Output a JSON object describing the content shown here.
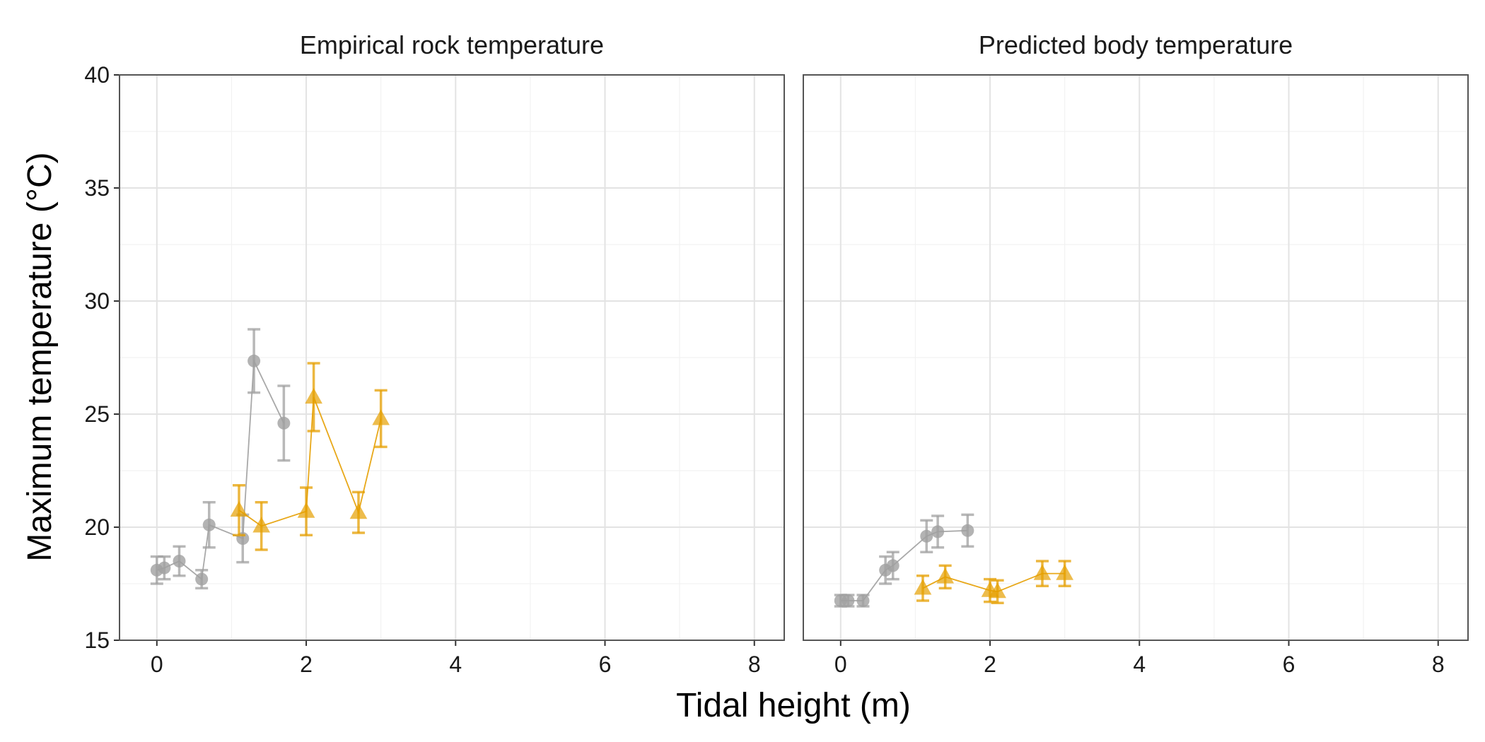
{
  "chart_data": {
    "type": "scatter",
    "xlabel": "Tidal height (m)",
    "ylabel": "Maximum temperature (°C)",
    "xlim": [
      -0.5,
      8.4
    ],
    "ylim": [
      15,
      40
    ],
    "x_ticks": [
      0,
      2,
      4,
      6,
      8
    ],
    "y_ticks": [
      15,
      20,
      25,
      30,
      35,
      40
    ],
    "grid": true,
    "legend": "none",
    "panels": [
      {
        "title": "Empirical rock temperature",
        "series": [
          {
            "color": "#a0a0a0",
            "marker": "circle",
            "points": [
              {
                "x": 0.0,
                "y": 18.1,
                "err": 0.6
              },
              {
                "x": 0.1,
                "y": 18.2,
                "err": 0.5
              },
              {
                "x": 0.3,
                "y": 18.5,
                "err": 0.65
              },
              {
                "x": 0.6,
                "y": 17.7,
                "err": 0.4
              },
              {
                "x": 0.7,
                "y": 20.1,
                "err": 1.0
              },
              {
                "x": 1.15,
                "y": 19.5,
                "err": 1.05
              },
              {
                "x": 1.3,
                "y": 27.35,
                "err": 1.4
              },
              {
                "x": 1.7,
                "y": 24.6,
                "err": 1.65
              }
            ]
          },
          {
            "color": "#e69f00",
            "marker": "triangle",
            "points": [
              {
                "x": 1.1,
                "y": 20.75,
                "err": 1.1
              },
              {
                "x": 1.4,
                "y": 20.05,
                "err": 1.05
              },
              {
                "x": 2.0,
                "y": 20.7,
                "err": 1.05
              },
              {
                "x": 2.1,
                "y": 25.75,
                "err": 1.5
              },
              {
                "x": 2.7,
                "y": 20.65,
                "err": 0.9
              },
              {
                "x": 3.0,
                "y": 24.8,
                "err": 1.25
              }
            ]
          }
        ]
      },
      {
        "title": "Predicted body temperature",
        "series": [
          {
            "color": "#a0a0a0",
            "marker": "circle",
            "points": [
              {
                "x": 0.0,
                "y": 16.75,
                "err": 0.25
              },
              {
                "x": 0.1,
                "y": 16.75,
                "err": 0.25
              },
              {
                "x": 0.3,
                "y": 16.75,
                "err": 0.25
              },
              {
                "x": 0.6,
                "y": 18.1,
                "err": 0.6
              },
              {
                "x": 0.7,
                "y": 18.3,
                "err": 0.6
              },
              {
                "x": 1.15,
                "y": 19.6,
                "err": 0.7
              },
              {
                "x": 1.3,
                "y": 19.8,
                "err": 0.7
              },
              {
                "x": 1.7,
                "y": 19.85,
                "err": 0.7
              }
            ]
          },
          {
            "color": "#e69f00",
            "marker": "triangle",
            "points": [
              {
                "x": 1.1,
                "y": 17.3,
                "err": 0.55
              },
              {
                "x": 1.4,
                "y": 17.8,
                "err": 0.5
              },
              {
                "x": 2.0,
                "y": 17.2,
                "err": 0.5
              },
              {
                "x": 2.1,
                "y": 17.15,
                "err": 0.5
              },
              {
                "x": 2.7,
                "y": 17.95,
                "err": 0.55
              },
              {
                "x": 3.0,
                "y": 17.95,
                "err": 0.55
              }
            ]
          }
        ]
      }
    ]
  }
}
